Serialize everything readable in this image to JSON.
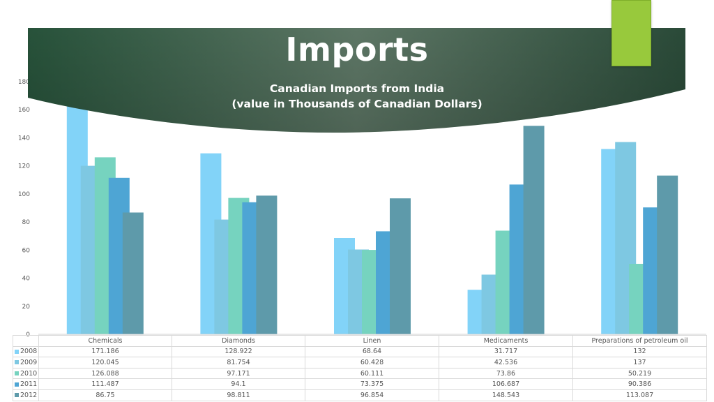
{
  "slide": {
    "title": "Imports"
  },
  "chart_data": {
    "type": "bar",
    "title": "Canadian Imports from India",
    "subtitle": "(value in Thousands  of Canadian Dollars)",
    "categories": [
      "Chemicals",
      "Diamonds",
      "Linen",
      "Medicaments",
      "Preparations of petroleum oil"
    ],
    "series": [
      {
        "name": "2008",
        "color": "#82d3f8",
        "values": [
          171.186,
          128.922,
          68.64,
          31.717,
          132
        ]
      },
      {
        "name": "2009",
        "color": "#7ec8e2",
        "values": [
          120.045,
          81.754,
          60.428,
          42.536,
          137
        ]
      },
      {
        "name": "2010",
        "color": "#76d3bf",
        "values": [
          126.088,
          97.171,
          60.111,
          73.86,
          50.219
        ]
      },
      {
        "name": "2011",
        "color": "#4ea5d4",
        "values": [
          111.487,
          94.1,
          73.375,
          106.687,
          90.386
        ]
      },
      {
        "name": "2012",
        "color": "#5e9aaa",
        "values": [
          86.75,
          98.811,
          96.854,
          148.543,
          113.087
        ]
      }
    ],
    "yticks": [
      0,
      20,
      40,
      60,
      80,
      100,
      120,
      140,
      160,
      180
    ],
    "ylim": [
      0,
      180
    ],
    "grid": false,
    "legend": "data-table"
  }
}
